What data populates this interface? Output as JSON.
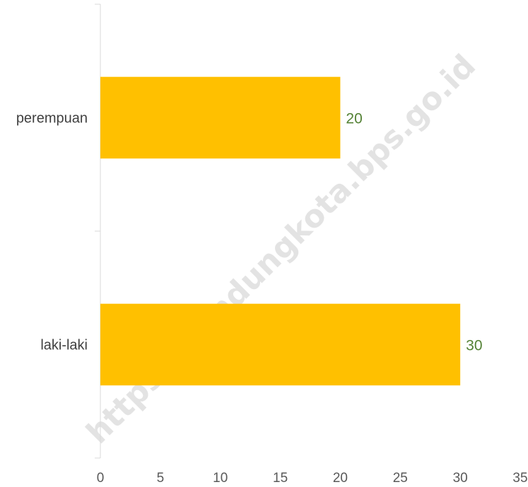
{
  "chart_data": {
    "type": "bar",
    "orientation": "horizontal",
    "categories": [
      "perempuan",
      "laki-laki"
    ],
    "values": [
      20,
      30
    ],
    "title": "",
    "xlabel": "",
    "ylabel": "",
    "xlim": [
      0,
      35
    ],
    "x_ticks": [
      "0",
      "5",
      "10",
      "15",
      "20",
      "25",
      "30",
      "35"
    ],
    "data_labels": [
      "20",
      "30"
    ],
    "grid": false,
    "legend": "none",
    "colors": {
      "bar": "#FFC000",
      "data_label": "#548235",
      "axis_line": "#D9D9D9",
      "category_text": "#404040",
      "tick_text": "#595959",
      "watermark": "#D9D9D9"
    }
  },
  "watermark": {
    "text": "https://bandungkota.bps.go.id"
  }
}
